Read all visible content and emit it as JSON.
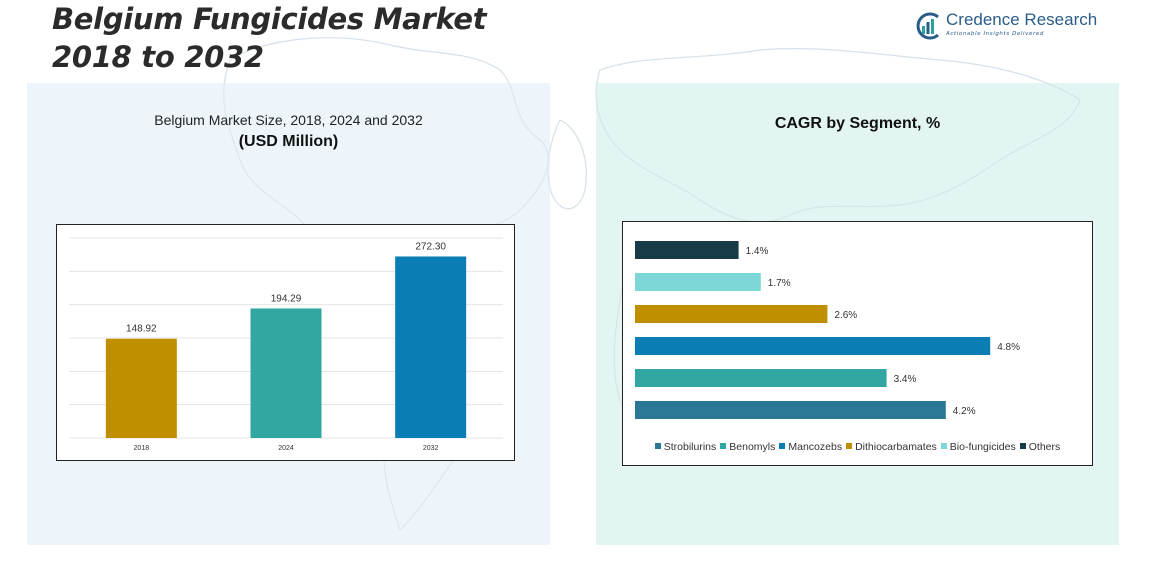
{
  "header": {
    "title_line1": "Belgium Fungicides Market",
    "title_line2": "2018 to 2032"
  },
  "brand": {
    "name": "Credence Research",
    "tagline": "Actionable Insights Delivered",
    "logo_icon": "credence-logo-icon"
  },
  "colors": {
    "strobilurins": "#2b7896",
    "benomyls": "#32a6a1",
    "mancozebs": "#0a7db4",
    "dithiocarbamates": "#bf8f00",
    "bio_fungicides": "#7dd7d6",
    "others": "#173b47"
  },
  "chart_data": [
    {
      "type": "bar",
      "title": "Belgium Market Size, 2018, 2024 and 2032",
      "subtitle": "(USD Million)",
      "categories": [
        "2018",
        "2024",
        "2032"
      ],
      "values": [
        148.92,
        194.29,
        272.3
      ],
      "value_labels": [
        "148.92",
        "194.29",
        "272.30"
      ],
      "bar_colors": [
        "#bf8f00",
        "#32a6a1",
        "#0a7db4"
      ],
      "xlabel": "",
      "ylabel": "",
      "ylim": [
        0,
        300
      ],
      "grid": true,
      "legend": "none"
    },
    {
      "type": "bar",
      "orientation": "horizontal",
      "title": "CAGR by Segment, %",
      "categories": [
        "Others",
        "Bio-fungicides",
        "Dithiocarbamates",
        "Mancozebs",
        "Benomyls",
        "Strobilurins"
      ],
      "values": [
        1.4,
        1.7,
        2.6,
        4.8,
        3.4,
        4.2
      ],
      "value_labels": [
        "1.4%",
        "1.7%",
        "2.6%",
        "4.8%",
        "3.4%",
        "4.2%"
      ],
      "bar_colors": [
        "#173b47",
        "#7dd7d6",
        "#bf8f00",
        "#0a7db4",
        "#32a6a1",
        "#2b7896"
      ],
      "legend_entries": [
        "Strobilurins",
        "Benomyls",
        "Mancozebs",
        "Dithiocarbamates",
        "Bio-fungicides",
        "Others"
      ],
      "legend_colors": [
        "#2b7896",
        "#32a6a1",
        "#0a7db4",
        "#bf8f00",
        "#7dd7d6",
        "#173b47"
      ],
      "xlim": [
        0,
        5
      ],
      "grid": false,
      "legend": "bottom"
    }
  ]
}
